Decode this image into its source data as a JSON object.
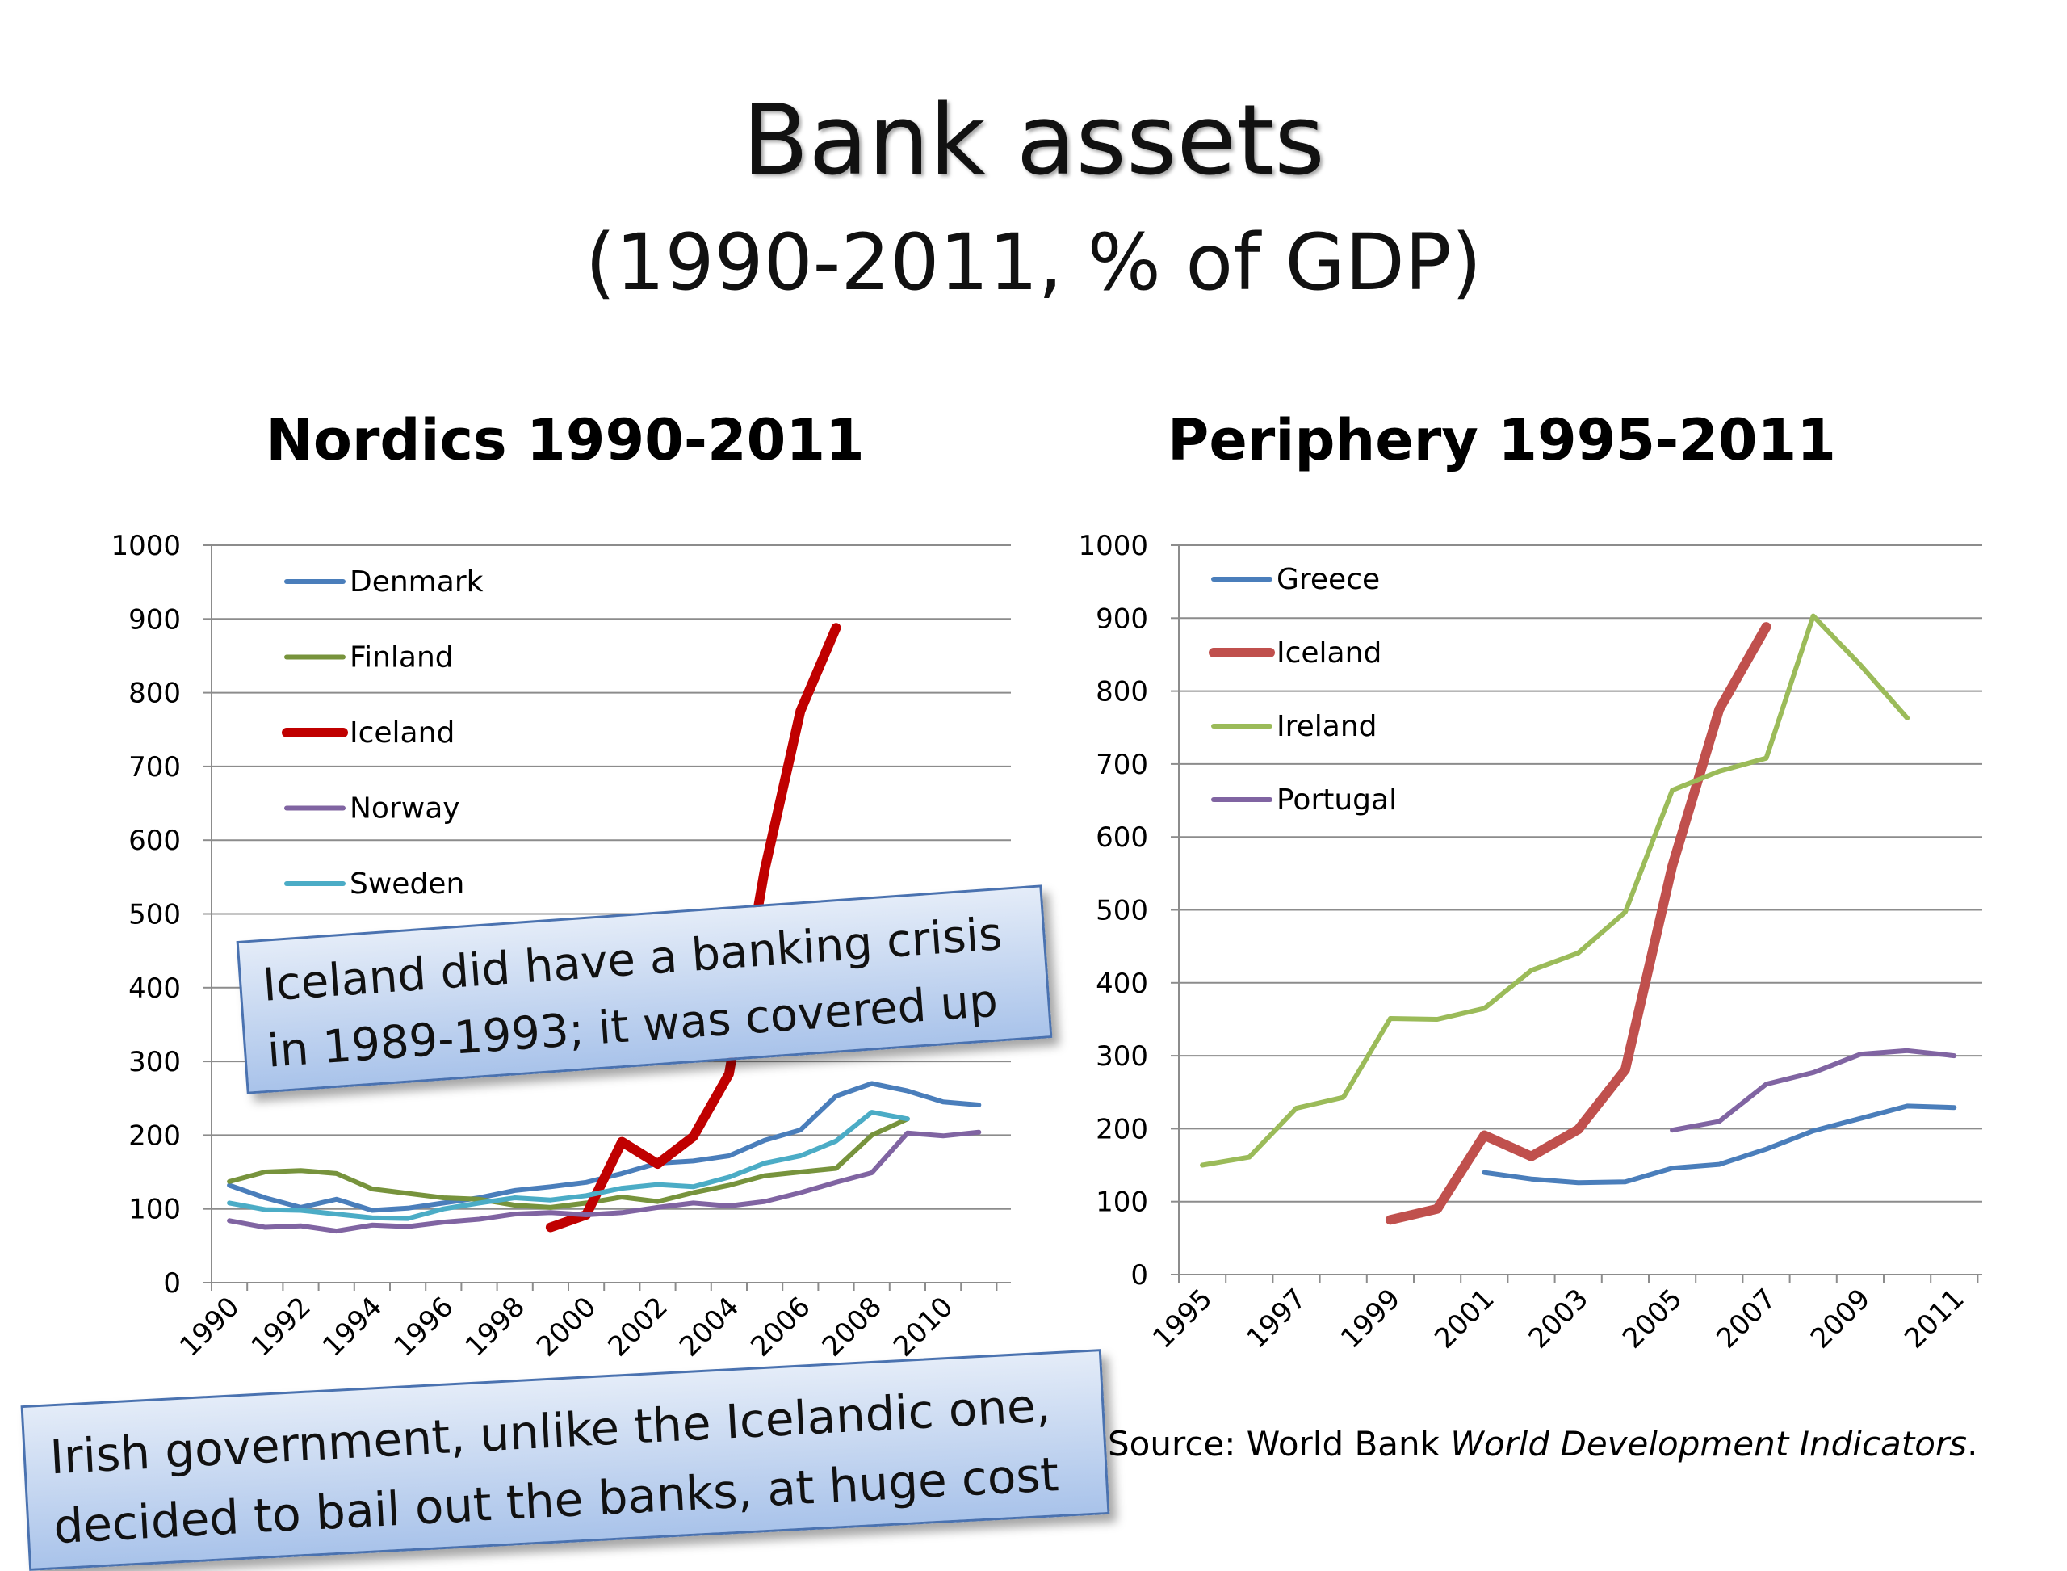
{
  "slide": {
    "title": "Bank assets",
    "subtitle": "(1990-2011, % of GDP)",
    "callout_1": "Iceland did have a banking crisis in 1989-1993; it was covered up",
    "callout_2": "Irish government, unlike the Icelandic one, decided to bail out the banks, at huge cost",
    "source_prefix": "Source: World Bank ",
    "source_italic": "World Development Indicators",
    "source_suffix": "."
  },
  "chart_data": [
    {
      "type": "line",
      "title": "Nordics 1990-2011",
      "x": [
        1990,
        1991,
        1992,
        1993,
        1994,
        1995,
        1996,
        1997,
        1998,
        1999,
        2000,
        2001,
        2002,
        2003,
        2004,
        2005,
        2006,
        2007,
        2008,
        2009,
        2010,
        2011
      ],
      "x_tick_labels": [
        "1990",
        "1992",
        "1994",
        "1996",
        "1998",
        "2000",
        "2002",
        "2004",
        "2006",
        "2008",
        "2010"
      ],
      "ylim": [
        0,
        1000
      ],
      "y_ticks": [
        0,
        100,
        200,
        300,
        400,
        500,
        600,
        700,
        800,
        900,
        1000
      ],
      "grid": true,
      "legend": "top-left",
      "series": [
        {
          "name": "Denmark",
          "color": "#4a7ebb",
          "width": 6,
          "values": [
            132,
            115,
            102,
            113,
            98,
            101,
            108,
            115,
            125,
            130,
            136,
            148,
            162,
            165,
            172,
            193,
            207,
            253,
            270,
            260,
            245,
            241
          ]
        },
        {
          "name": "Finland",
          "color": "#77933c",
          "width": 6,
          "values": [
            137,
            150,
            152,
            148,
            127,
            121,
            115,
            113,
            105,
            102,
            108,
            116,
            110,
            122,
            132,
            145,
            150,
            155,
            200,
            222,
            null,
            null
          ]
        },
        {
          "name": "Iceland",
          "color": "#c00000",
          "width": 12,
          "values": [
            null,
            null,
            null,
            null,
            null,
            null,
            null,
            null,
            null,
            75,
            92,
            191,
            161,
            198,
            283,
            560,
            775,
            888,
            null,
            null,
            null,
            null
          ]
        },
        {
          "name": "Norway",
          "color": "#8064a2",
          "width": 6,
          "values": [
            84,
            75,
            77,
            70,
            78,
            76,
            82,
            86,
            93,
            95,
            92,
            95,
            102,
            108,
            104,
            110,
            122,
            136,
            149,
            203,
            199,
            204
          ]
        },
        {
          "name": "Sweden",
          "color": "#4bacc6",
          "width": 6,
          "values": [
            108,
            99,
            98,
            93,
            88,
            87,
            100,
            108,
            115,
            112,
            118,
            128,
            133,
            130,
            143,
            162,
            172,
            192,
            231,
            222,
            null,
            null
          ]
        }
      ]
    },
    {
      "type": "line",
      "title": "Periphery 1995-2011",
      "x": [
        1995,
        1996,
        1997,
        1998,
        1999,
        2000,
        2001,
        2002,
        2003,
        2004,
        2005,
        2006,
        2007,
        2008,
        2009,
        2010,
        2011
      ],
      "x_tick_labels": [
        "1995",
        "1997",
        "1999",
        "2001",
        "2003",
        "2005",
        "2007",
        "2009",
        "2011"
      ],
      "ylim": [
        0,
        1000
      ],
      "y_ticks": [
        0,
        100,
        200,
        300,
        400,
        500,
        600,
        700,
        800,
        900,
        1000
      ],
      "grid": true,
      "legend": "top-left",
      "series": [
        {
          "name": "Greece",
          "color": "#4a7ebb",
          "width": 6,
          "values": [
            null,
            null,
            null,
            null,
            null,
            null,
            140,
            131,
            126,
            127,
            146,
            151,
            172,
            197,
            214,
            231,
            229
          ]
        },
        {
          "name": "Iceland",
          "color": "#c0504d",
          "width": 12,
          "values": [
            null,
            null,
            null,
            null,
            75,
            90,
            191,
            162,
            199,
            281,
            560,
            775,
            888,
            null,
            null,
            null,
            null
          ]
        },
        {
          "name": "Ireland",
          "color": "#9bbb59",
          "width": 6,
          "values": [
            150,
            161,
            228,
            243,
            351,
            350,
            365,
            417,
            441,
            497,
            664,
            690,
            708,
            903,
            836,
            763,
            null
          ]
        },
        {
          "name": "Portugal",
          "color": "#8064a2",
          "width": 6,
          "values": [
            null,
            null,
            null,
            null,
            null,
            null,
            null,
            null,
            null,
            null,
            198,
            210,
            261,
            277,
            302,
            307,
            300
          ]
        }
      ]
    }
  ]
}
